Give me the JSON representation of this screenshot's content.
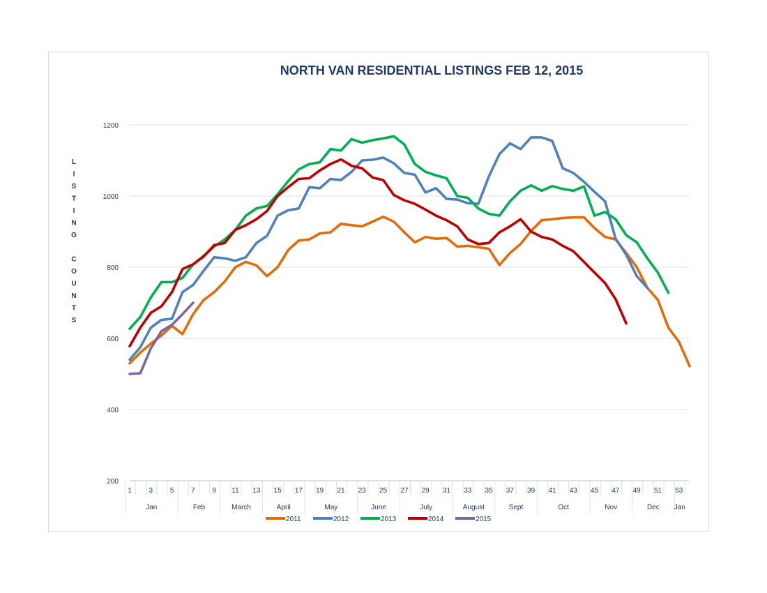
{
  "chart_data": {
    "type": "line",
    "title": "NORTH VAN RESIDENTIAL LISTINGS FEB 12, 2015",
    "ylabel": "LISTING COUNTS",
    "xlabel": "",
    "ylim": [
      200,
      1200
    ],
    "yticks": [
      200,
      400,
      600,
      800,
      1000,
      1200
    ],
    "xlim": [
      1,
      54
    ],
    "xticks": [
      1,
      3,
      5,
      7,
      9,
      11,
      13,
      15,
      17,
      19,
      21,
      23,
      25,
      27,
      29,
      31,
      33,
      35,
      37,
      39,
      41,
      43,
      45,
      47,
      49,
      51,
      53
    ],
    "months": [
      {
        "label": "Jan",
        "start": 1,
        "end": 6
      },
      {
        "label": "Feb",
        "start": 6,
        "end": 10
      },
      {
        "label": "March",
        "start": 10,
        "end": 14
      },
      {
        "label": "April",
        "start": 14,
        "end": 18
      },
      {
        "label": "May",
        "start": 18,
        "end": 23
      },
      {
        "label": "June",
        "start": 23,
        "end": 27
      },
      {
        "label": "July",
        "start": 27,
        "end": 32
      },
      {
        "label": "August",
        "start": 32,
        "end": 36
      },
      {
        "label": "Sept",
        "start": 36,
        "end": 40
      },
      {
        "label": "Oct",
        "start": 40,
        "end": 45
      },
      {
        "label": "Nov",
        "start": 45,
        "end": 49
      },
      {
        "label": "Dec",
        "start": 49,
        "end": 53
      },
      {
        "label": "Jan",
        "start": 53,
        "end": 54
      }
    ],
    "grid": true,
    "legend_position": "bottom",
    "series": [
      {
        "name": "2011",
        "color": "#e36c09",
        "values": [
          530,
          560,
          585,
          608,
          635,
          612,
          668,
          708,
          730,
          760,
          800,
          815,
          805,
          775,
          800,
          848,
          875,
          878,
          895,
          898,
          922,
          918,
          915,
          928,
          942,
          928,
          898,
          870,
          885,
          880,
          882,
          858,
          860,
          856,
          852,
          806,
          840,
          865,
          902,
          932,
          935,
          938,
          940,
          940,
          910,
          885,
          878,
          840,
          800,
          742,
          708,
          630,
          590,
          522
        ]
      },
      {
        "name": "2012",
        "color": "#4f81bd",
        "values": [
          540,
          575,
          630,
          652,
          655,
          730,
          750,
          790,
          828,
          825,
          818,
          828,
          868,
          888,
          945,
          960,
          965,
          1025,
          1022,
          1048,
          1045,
          1068,
          1100,
          1102,
          1108,
          1092,
          1065,
          1060,
          1010,
          1022,
          992,
          990,
          980,
          978,
          1055,
          1118,
          1148,
          1132,
          1165,
          1165,
          1155,
          1078,
          1065,
          1040,
          1012,
          985,
          880,
          835,
          775,
          742
        ]
      },
      {
        "name": "2013",
        "color": "#00b050",
        "values": [
          627,
          660,
          715,
          758,
          758,
          770,
          808,
          832,
          858,
          878,
          905,
          945,
          965,
          972,
          1005,
          1042,
          1075,
          1090,
          1095,
          1132,
          1128,
          1160,
          1150,
          1157,
          1162,
          1168,
          1145,
          1090,
          1068,
          1058,
          1050,
          1000,
          995,
          965,
          950,
          945,
          985,
          1015,
          1030,
          1015,
          1028,
          1020,
          1015,
          1027,
          945,
          955,
          935,
          890,
          870,
          825,
          785,
          728
        ]
      },
      {
        "name": "2014",
        "color": "#c00000",
        "values": [
          578,
          630,
          672,
          690,
          730,
          795,
          808,
          830,
          862,
          868,
          905,
          918,
          935,
          958,
          1000,
          1025,
          1048,
          1050,
          1072,
          1090,
          1103,
          1085,
          1078,
          1052,
          1045,
          1003,
          988,
          978,
          962,
          945,
          932,
          915,
          878,
          865,
          868,
          898,
          915,
          935,
          900,
          885,
          878,
          860,
          845,
          815,
          785,
          755,
          710,
          642
        ]
      },
      {
        "name": "2015",
        "color": "#8064a2",
        "values": [
          500,
          502,
          572,
          620,
          638,
          668,
          700
        ]
      }
    ]
  }
}
